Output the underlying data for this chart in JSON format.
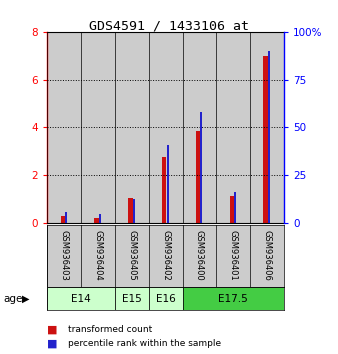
{
  "title": "GDS4591 / 1433106_at",
  "samples": [
    "GSM936403",
    "GSM936404",
    "GSM936405",
    "GSM936402",
    "GSM936400",
    "GSM936401",
    "GSM936406"
  ],
  "transformed_count": [
    0.3,
    0.2,
    1.05,
    2.75,
    3.85,
    1.15,
    7.0
  ],
  "percentile_rank": [
    6.0,
    4.5,
    12.5,
    41.0,
    58.0,
    16.0,
    90.0
  ],
  "bar_color_red": "#cc1111",
  "bar_color_blue": "#2222cc",
  "ylim_left": [
    0,
    8
  ],
  "ylim_right": [
    0,
    100
  ],
  "yticks_left": [
    0,
    2,
    4,
    6,
    8
  ],
  "yticks_right": [
    0,
    25,
    50,
    75,
    100
  ],
  "ytick_labels_right": [
    "0",
    "25",
    "50",
    "75",
    "100%"
  ],
  "bar_bg_color": "#cccccc",
  "age_label": "age",
  "legend_red": "transformed count",
  "legend_blue": "percentile rank within the sample",
  "age_spans": [
    {
      "label": "E14",
      "xstart": -0.5,
      "xend": 1.5,
      "color": "#ccffcc"
    },
    {
      "label": "E15",
      "xstart": 1.5,
      "xend": 2.5,
      "color": "#ccffcc"
    },
    {
      "label": "E16",
      "xstart": 2.5,
      "xend": 3.5,
      "color": "#ccffcc"
    },
    {
      "label": "E17.5",
      "xstart": 3.5,
      "xend": 6.5,
      "color": "#44cc44"
    }
  ]
}
